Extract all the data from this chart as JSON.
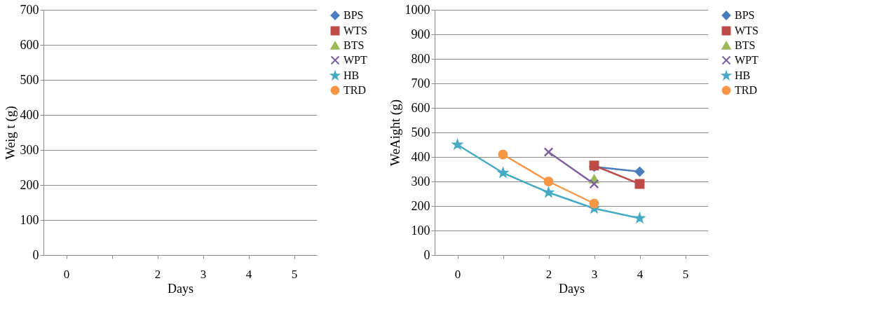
{
  "chart_data": [
    {
      "type": "line",
      "xlabel": "Days",
      "ylabel": "Weig t (g)",
      "categories": [
        "0",
        null,
        "2",
        "3",
        "4",
        "5"
      ],
      "ylim": [
        0,
        700
      ],
      "yticks": [
        0,
        100,
        200,
        300,
        400,
        500,
        600,
        700
      ],
      "grid": "y",
      "legend": "right",
      "series": [
        {
          "name": "BPS",
          "color": "#4a7ebb",
          "marker": "diamond",
          "values": [
            null,
            null,
            null,
            null,
            null,
            null
          ]
        },
        {
          "name": "WTS",
          "color": "#be4b48",
          "marker": "square",
          "values": [
            null,
            null,
            null,
            null,
            null,
            null
          ]
        },
        {
          "name": "BTS",
          "color": "#98b954",
          "marker": "triangle",
          "values": [
            null,
            null,
            null,
            null,
            null,
            null
          ]
        },
        {
          "name": "WPT",
          "color": "#7d60a0",
          "marker": "cross",
          "values": [
            null,
            null,
            null,
            null,
            null,
            null
          ]
        },
        {
          "name": "HB",
          "color": "#46aac5",
          "marker": "star",
          "values": [
            null,
            null,
            null,
            null,
            null,
            null
          ]
        },
        {
          "name": "TRD",
          "color": "#f79646",
          "marker": "circle",
          "values": [
            null,
            null,
            null,
            null,
            null,
            null
          ]
        }
      ]
    },
    {
      "type": "line",
      "xlabel": "Days",
      "ylabel": "WeAight (g)",
      "categories": [
        "0",
        null,
        "2",
        "3",
        "4",
        "5"
      ],
      "ylim": [
        0,
        1000
      ],
      "yticks": [
        0,
        100,
        200,
        300,
        400,
        500,
        600,
        700,
        800,
        900,
        1000
      ],
      "grid": "y",
      "legend": "right",
      "series": [
        {
          "name": "BPS",
          "color": "#4a7ebb",
          "marker": "diamond",
          "values": [
            null,
            null,
            null,
            360,
            340,
            null
          ]
        },
        {
          "name": "WTS",
          "color": "#be4b48",
          "marker": "square",
          "values": [
            null,
            null,
            null,
            365,
            290,
            null
          ]
        },
        {
          "name": "BTS",
          "color": "#98b954",
          "marker": "triangle",
          "values": [
            null,
            null,
            null,
            310,
            null,
            null
          ]
        },
        {
          "name": "WPT",
          "color": "#7d60a0",
          "marker": "cross",
          "values": [
            null,
            null,
            420,
            290,
            null,
            null
          ]
        },
        {
          "name": "HB",
          "color": "#46aac5",
          "marker": "star",
          "values": [
            450,
            335,
            255,
            190,
            150,
            null
          ]
        },
        {
          "name": "TRD",
          "color": "#f79646",
          "marker": "circle",
          "values": [
            null,
            410,
            300,
            210,
            null,
            null
          ]
        }
      ]
    }
  ]
}
